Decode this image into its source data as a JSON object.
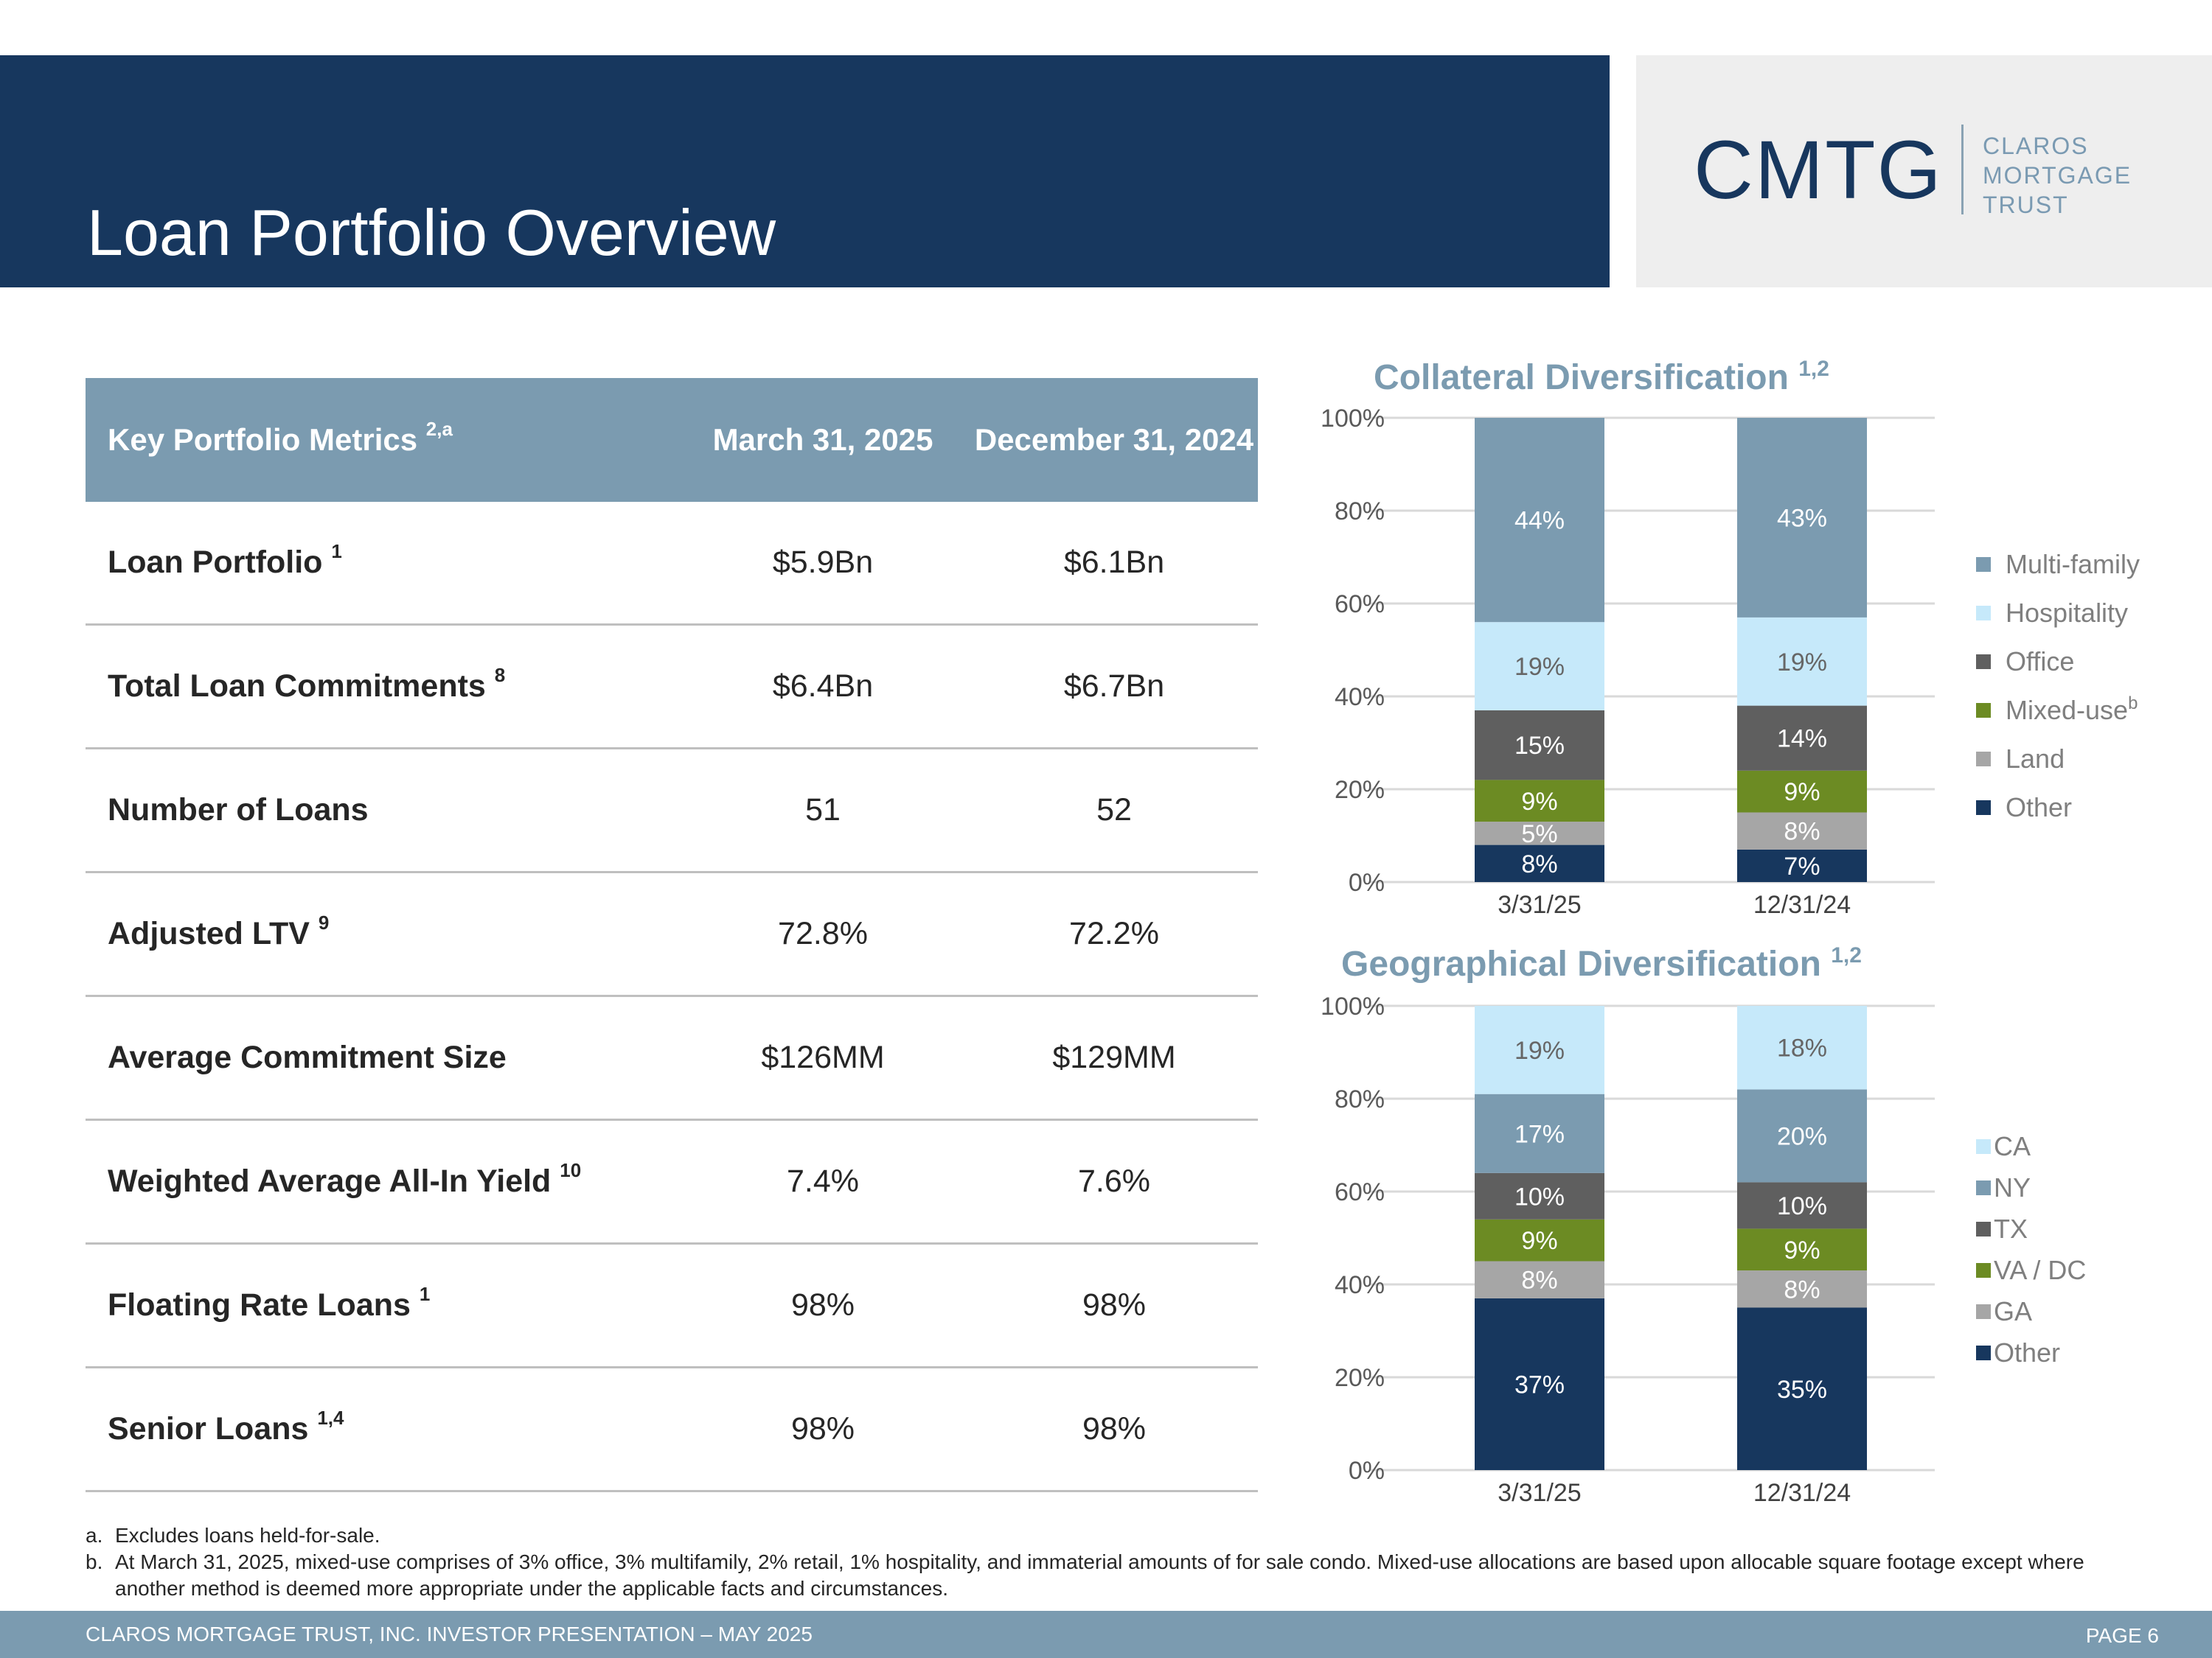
{
  "header": {
    "title": "Loan Portfolio Overview",
    "logo": {
      "mark": "CMTG",
      "words": [
        "CLAROS",
        "MORTGAGE",
        "TRUST"
      ]
    }
  },
  "metrics": {
    "header": {
      "label": "Key Portfolio Metrics",
      "label_sup": "2,a",
      "col1": "March 31, 2025",
      "col2": "December 31, 2024"
    },
    "rows": [
      {
        "label": "Loan Portfolio",
        "sup": "1",
        "v1": "$5.9Bn",
        "v2": "$6.1Bn"
      },
      {
        "label": "Total Loan Commitments",
        "sup": "8",
        "v1": "$6.4Bn",
        "v2": "$6.7Bn"
      },
      {
        "label": "Number of Loans",
        "sup": "",
        "v1": "51",
        "v2": "52"
      },
      {
        "label": "Adjusted LTV",
        "sup": "9",
        "v1": "72.8%",
        "v2": "72.2%"
      },
      {
        "label": "Average Commitment Size",
        "sup": "",
        "v1": "$126MM",
        "v2": "$129MM"
      },
      {
        "label": "Weighted Average All-In Yield",
        "sup": "10",
        "v1": "7.4%",
        "v2": "7.6%"
      },
      {
        "label": "Floating Rate Loans",
        "sup": "1",
        "v1": "98%",
        "v2": "98%"
      },
      {
        "label": "Senior Loans",
        "sup": "1,4",
        "v1": "98%",
        "v2": "98%"
      }
    ]
  },
  "chart_data": [
    {
      "type": "bar",
      "stacked": true,
      "title": "Collateral Diversification",
      "title_sup": "1,2",
      "categories": [
        "3/31/25",
        "12/31/24"
      ],
      "yticks": [
        "0%",
        "20%",
        "40%",
        "60%",
        "80%",
        "100%"
      ],
      "ylim": [
        0,
        100
      ],
      "legend_position": "right",
      "series": [
        {
          "name": "Other",
          "name_sup": "",
          "color": "#17375e",
          "label_color": "#ffffff",
          "values": [
            8,
            7
          ],
          "labels": [
            "8%",
            "7%"
          ]
        },
        {
          "name": "Land",
          "name_sup": "",
          "color": "#a6a6a6",
          "label_color": "#ffffff",
          "values": [
            5,
            8
          ],
          "labels": [
            "5%",
            "8%"
          ]
        },
        {
          "name": "Mixed-use",
          "name_sup": "b",
          "color": "#6c8b23",
          "label_color": "#ffffff",
          "values": [
            9,
            9
          ],
          "labels": [
            "9%",
            "9%"
          ]
        },
        {
          "name": "Office",
          "name_sup": "",
          "color": "#5f5f5f",
          "label_color": "#ffffff",
          "values": [
            15,
            14
          ],
          "labels": [
            "15%",
            "14%"
          ]
        },
        {
          "name": "Hospitality",
          "name_sup": "",
          "color": "#c6e9fa",
          "label_color": "#666666",
          "values": [
            19,
            19
          ],
          "labels": [
            "19%",
            "19%"
          ]
        },
        {
          "name": "Multi-family",
          "name_sup": "",
          "color": "#7b9bb0",
          "label_color": "#ffffff",
          "values": [
            44,
            43
          ],
          "labels": [
            "44%",
            "43%"
          ]
        }
      ]
    },
    {
      "type": "bar",
      "stacked": true,
      "title": "Geographical Diversification",
      "title_sup": "1,2",
      "categories": [
        "3/31/25",
        "12/31/24"
      ],
      "yticks": [
        "0%",
        "20%",
        "40%",
        "60%",
        "80%",
        "100%"
      ],
      "ylim": [
        0,
        100
      ],
      "legend_position": "right",
      "series": [
        {
          "name": "Other",
          "name_sup": "",
          "color": "#17375e",
          "label_color": "#ffffff",
          "values": [
            37,
            35
          ],
          "labels": [
            "37%",
            "35%"
          ]
        },
        {
          "name": "GA",
          "name_sup": "",
          "color": "#a6a6a6",
          "label_color": "#ffffff",
          "values": [
            8,
            8
          ],
          "labels": [
            "8%",
            "8%"
          ]
        },
        {
          "name": "VA / DC",
          "name_sup": "",
          "color": "#6c8b23",
          "label_color": "#ffffff",
          "values": [
            9,
            9
          ],
          "labels": [
            "9%",
            "9%"
          ]
        },
        {
          "name": "TX",
          "name_sup": "",
          "color": "#5f5f5f",
          "label_color": "#ffffff",
          "values": [
            10,
            10
          ],
          "labels": [
            "10%",
            "10%"
          ]
        },
        {
          "name": "NY",
          "name_sup": "",
          "color": "#7b9bb0",
          "label_color": "#ffffff",
          "values": [
            17,
            20
          ],
          "labels": [
            "17%",
            "20%"
          ]
        },
        {
          "name": "CA",
          "name_sup": "",
          "color": "#c6e9fa",
          "label_color": "#666666",
          "values": [
            19,
            18
          ],
          "labels": [
            "19%",
            "18%"
          ]
        }
      ]
    }
  ],
  "footnotes": [
    {
      "mark": "a.",
      "text": "Excludes loans held-for-sale."
    },
    {
      "mark": "b.",
      "text": "At March 31, 2025, mixed-use comprises of 3% office, 3% multifamily, 2% retail, 1% hospitality, and immaterial amounts of for sale condo. Mixed-use allocations are based upon allocable square footage except where another method is deemed more appropriate under the applicable facts and circumstances."
    }
  ],
  "footer": {
    "left": "CLAROS MORTGAGE TRUST, INC. INVESTOR PRESENTATION – MAY 2025",
    "right": "PAGE 6"
  }
}
